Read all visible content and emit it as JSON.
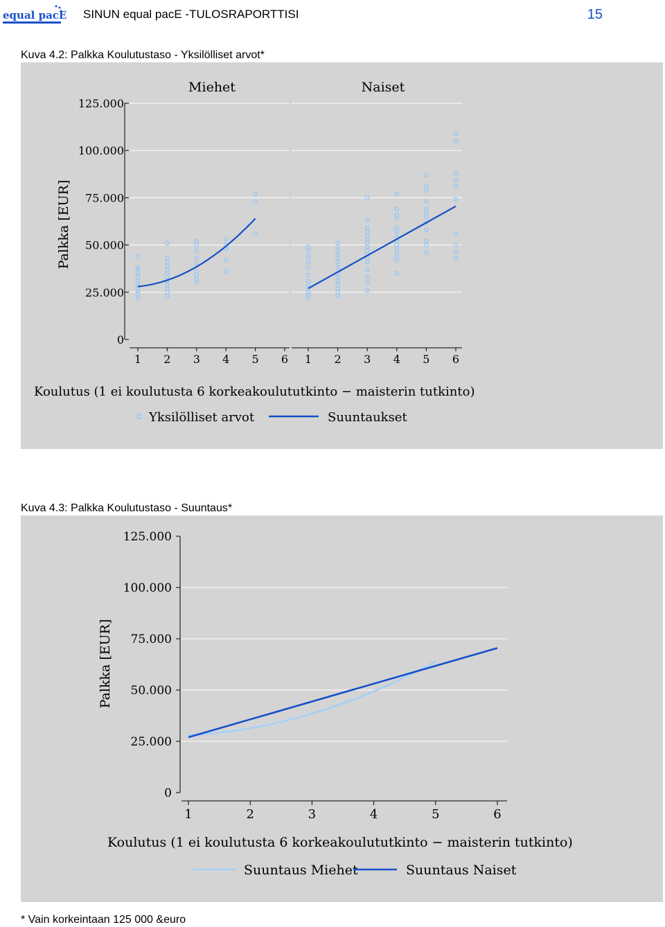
{
  "header": {
    "title": "SINUN equal pacE -TULOSRAPORTTISI",
    "page_number": "15",
    "logo_text": "equal pacE",
    "brand_color": "#1a4fc8"
  },
  "figure1": {
    "caption": "Kuva 4.2: Palkka Koulutustaso - Yksilölliset arvot*",
    "legend_points": "Yksilölliset arvot",
    "legend_line": "Suuntaukset"
  },
  "figure2": {
    "caption": "Kuva 4.3: Palkka Koulutustaso - Suuntaus*",
    "legend_men": "Suuntaus Miehet",
    "legend_women": "Suuntaus Naiset"
  },
  "footnote": "* Vain korkeintaan 125 000 &euro",
  "chart_data": [
    {
      "type": "scatter",
      "title": "",
      "ylabel": "Palkka [EUR]",
      "xlabel": "Koulutus (1 ei koulutusta 6 korkeakoulututkinto − maisterin tutkinto)",
      "ylim": [
        0,
        125000
      ],
      "y_ticks": [
        0,
        25000,
        50000,
        75000,
        100000,
        125000
      ],
      "y_tick_labels": [
        "0",
        "25.000",
        "50.000",
        "75.000",
        "100.000",
        "125.000"
      ],
      "x_ticks": [
        1,
        2,
        3,
        4,
        5,
        6
      ],
      "grid": true,
      "legend_position": "bottom",
      "colors": {
        "points": "#9cc8f2",
        "trend": "#1450c8",
        "panel": "#d4d4d4"
      },
      "panels": [
        {
          "name": "Miehet",
          "points": [
            [
              1,
              44000
            ],
            [
              1,
              38000
            ],
            [
              1,
              37000
            ],
            [
              1,
              35000
            ],
            [
              1,
              33000
            ],
            [
              1,
              31000
            ],
            [
              1,
              29000
            ],
            [
              1,
              27000
            ],
            [
              1,
              25500
            ],
            [
              1,
              24000
            ],
            [
              1,
              22000
            ],
            [
              2,
              51000
            ],
            [
              2,
              43000
            ],
            [
              2,
              41000
            ],
            [
              2,
              39000
            ],
            [
              2,
              37000
            ],
            [
              2,
              35000
            ],
            [
              2,
              33000
            ],
            [
              2,
              31000
            ],
            [
              2,
              29000
            ],
            [
              2,
              27000
            ],
            [
              2,
              25000
            ],
            [
              2,
              23000
            ],
            [
              3,
              52000
            ],
            [
              3,
              50000
            ],
            [
              3,
              47000
            ],
            [
              3,
              43000
            ],
            [
              3,
              40000
            ],
            [
              3,
              36000
            ],
            [
              3,
              34000
            ],
            [
              3,
              32000
            ],
            [
              3,
              30000
            ],
            [
              4,
              53000
            ],
            [
              4,
              50000
            ],
            [
              4,
              48000
            ],
            [
              4,
              42000
            ],
            [
              4,
              36000
            ],
            [
              5,
              77000
            ],
            [
              5,
              73000
            ],
            [
              5,
              56000
            ]
          ],
          "trend": [
            [
              1,
              28000
            ],
            [
              2,
              32000
            ],
            [
              3,
              38500
            ],
            [
              4,
              48500
            ],
            [
              5,
              64000
            ]
          ]
        },
        {
          "name": "Naiset",
          "points": [
            [
              1,
              49000
            ],
            [
              1,
              47000
            ],
            [
              1,
              44000
            ],
            [
              1,
              41000
            ],
            [
              1,
              38000
            ],
            [
              1,
              34000
            ],
            [
              1,
              31000
            ],
            [
              1,
              29000
            ],
            [
              1,
              27000
            ],
            [
              1,
              25000
            ],
            [
              1,
              23500
            ],
            [
              1,
              22000
            ],
            [
              2,
              51000
            ],
            [
              2,
              49000
            ],
            [
              2,
              47000
            ],
            [
              2,
              45000
            ],
            [
              2,
              43000
            ],
            [
              2,
              41000
            ],
            [
              2,
              38000
            ],
            [
              2,
              35000
            ],
            [
              2,
              33000
            ],
            [
              2,
              31000
            ],
            [
              2,
              29000
            ],
            [
              2,
              27000
            ],
            [
              2,
              25000
            ],
            [
              2,
              23000
            ],
            [
              3,
              75000
            ],
            [
              3,
              63000
            ],
            [
              3,
              59000
            ],
            [
              3,
              57000
            ],
            [
              3,
              55000
            ],
            [
              3,
              53000
            ],
            [
              3,
              51000
            ],
            [
              3,
              49000
            ],
            [
              3,
              47000
            ],
            [
              3,
              45000
            ],
            [
              3,
              43000
            ],
            [
              3,
              41000
            ],
            [
              3,
              37000
            ],
            [
              3,
              33000
            ],
            [
              3,
              30000
            ],
            [
              3,
              26000
            ],
            [
              4,
              77000
            ],
            [
              4,
              69000
            ],
            [
              4,
              66000
            ],
            [
              4,
              64000
            ],
            [
              4,
              59000
            ],
            [
              4,
              57000
            ],
            [
              4,
              54000
            ],
            [
              4,
              52000
            ],
            [
              4,
              50000
            ],
            [
              4,
              48000
            ],
            [
              4,
              46000
            ],
            [
              4,
              44000
            ],
            [
              4,
              42000
            ],
            [
              4,
              35000
            ],
            [
              5,
              87000
            ],
            [
              5,
              81000
            ],
            [
              5,
              79000
            ],
            [
              5,
              73000
            ],
            [
              5,
              69000
            ],
            [
              5,
              67000
            ],
            [
              5,
              65000
            ],
            [
              5,
              62000
            ],
            [
              5,
              58000
            ],
            [
              5,
              52000
            ],
            [
              5,
              50000
            ],
            [
              5,
              46000
            ],
            [
              6,
              109000
            ],
            [
              6,
              105000
            ],
            [
              6,
              88000
            ],
            [
              6,
              84000
            ],
            [
              6,
              81000
            ],
            [
              6,
              74000
            ],
            [
              6,
              56000
            ],
            [
              6,
              50000
            ],
            [
              6,
              46000
            ],
            [
              6,
              43000
            ]
          ],
          "trend": [
            [
              1,
              27000
            ],
            [
              6,
              70500
            ]
          ]
        }
      ]
    },
    {
      "type": "line",
      "title": "",
      "ylabel": "Palkka [EUR]",
      "xlabel": "Koulutus (1 ei koulutusta 6 korkeakoulututkinto − maisterin tutkinto)",
      "ylim": [
        0,
        125000
      ],
      "y_ticks": [
        0,
        25000,
        50000,
        75000,
        100000,
        125000
      ],
      "y_tick_labels": [
        "0",
        "25.000",
        "50.000",
        "75.000",
        "100.000",
        "125.000"
      ],
      "x_ticks": [
        1,
        2,
        3,
        4,
        5,
        6
      ],
      "grid": true,
      "legend_position": "bottom",
      "series": [
        {
          "name": "Suuntaus Miehet",
          "color": "#a6d0f5",
          "x": [
            1,
            2,
            3,
            4,
            5
          ],
          "y": [
            28000,
            32000,
            38500,
            48500,
            64000
          ]
        },
        {
          "name": "Suuntaus Naiset",
          "color": "#1450c8",
          "x": [
            1,
            6
          ],
          "y": [
            27000,
            70500
          ]
        }
      ]
    }
  ]
}
